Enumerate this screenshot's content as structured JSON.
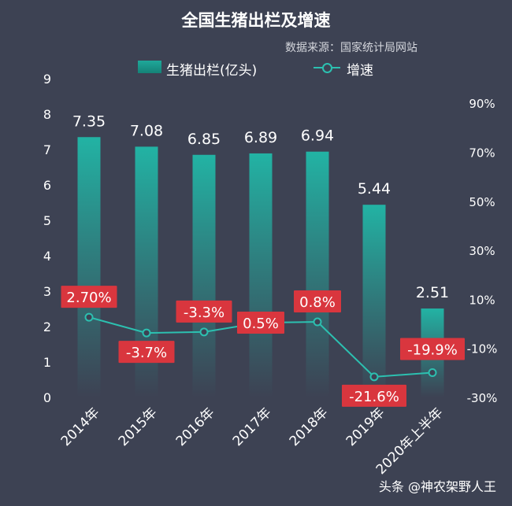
{
  "chart_data": {
    "type": "bar",
    "title": "全国生猪出栏及增速",
    "subtitle": "数据来源：国家统计局网站",
    "categories": [
      "2014年",
      "2015年",
      "2016年",
      "2017年",
      "2018年",
      "2019年",
      "2020年上半年"
    ],
    "series": [
      {
        "name": "生猪出栏(亿头)",
        "type": "bar",
        "values": [
          7.35,
          7.08,
          6.85,
          6.89,
          6.94,
          5.44,
          2.51
        ],
        "labels": [
          "7.35",
          "7.08",
          "6.85",
          "6.89",
          "6.94",
          "5.44",
          "2.51"
        ]
      },
      {
        "name": "增速",
        "type": "line",
        "axis": "right",
        "values": [
          2.7,
          -3.7,
          -3.3,
          0.5,
          0.8,
          -21.6,
          -19.9
        ],
        "labels": [
          "2.70%",
          "-3.7%",
          "-3.3%",
          "0.5%",
          "0.8%",
          "-21.6%",
          "-19.9%"
        ]
      }
    ],
    "y_left": {
      "ylim": [
        0,
        9
      ],
      "ticks": [
        "0",
        "1",
        "2",
        "3",
        "4",
        "5",
        "6",
        "7",
        "8",
        "9"
      ]
    },
    "y_right": {
      "ylim": [
        -30,
        100
      ],
      "ticks": [
        "-30%",
        "-10%",
        "10%",
        "30%",
        "50%",
        "70%",
        "90%"
      ],
      "tick_values": [
        -30,
        -10,
        10,
        30,
        50,
        70,
        90
      ]
    },
    "grid": false,
    "legend": "top"
  },
  "colors": {
    "background": "#3d4253",
    "bar": "#1fa89a",
    "line": "#2cc0b0",
    "label_box": "#d9363e"
  },
  "watermark": "头条 @神农架野人王"
}
